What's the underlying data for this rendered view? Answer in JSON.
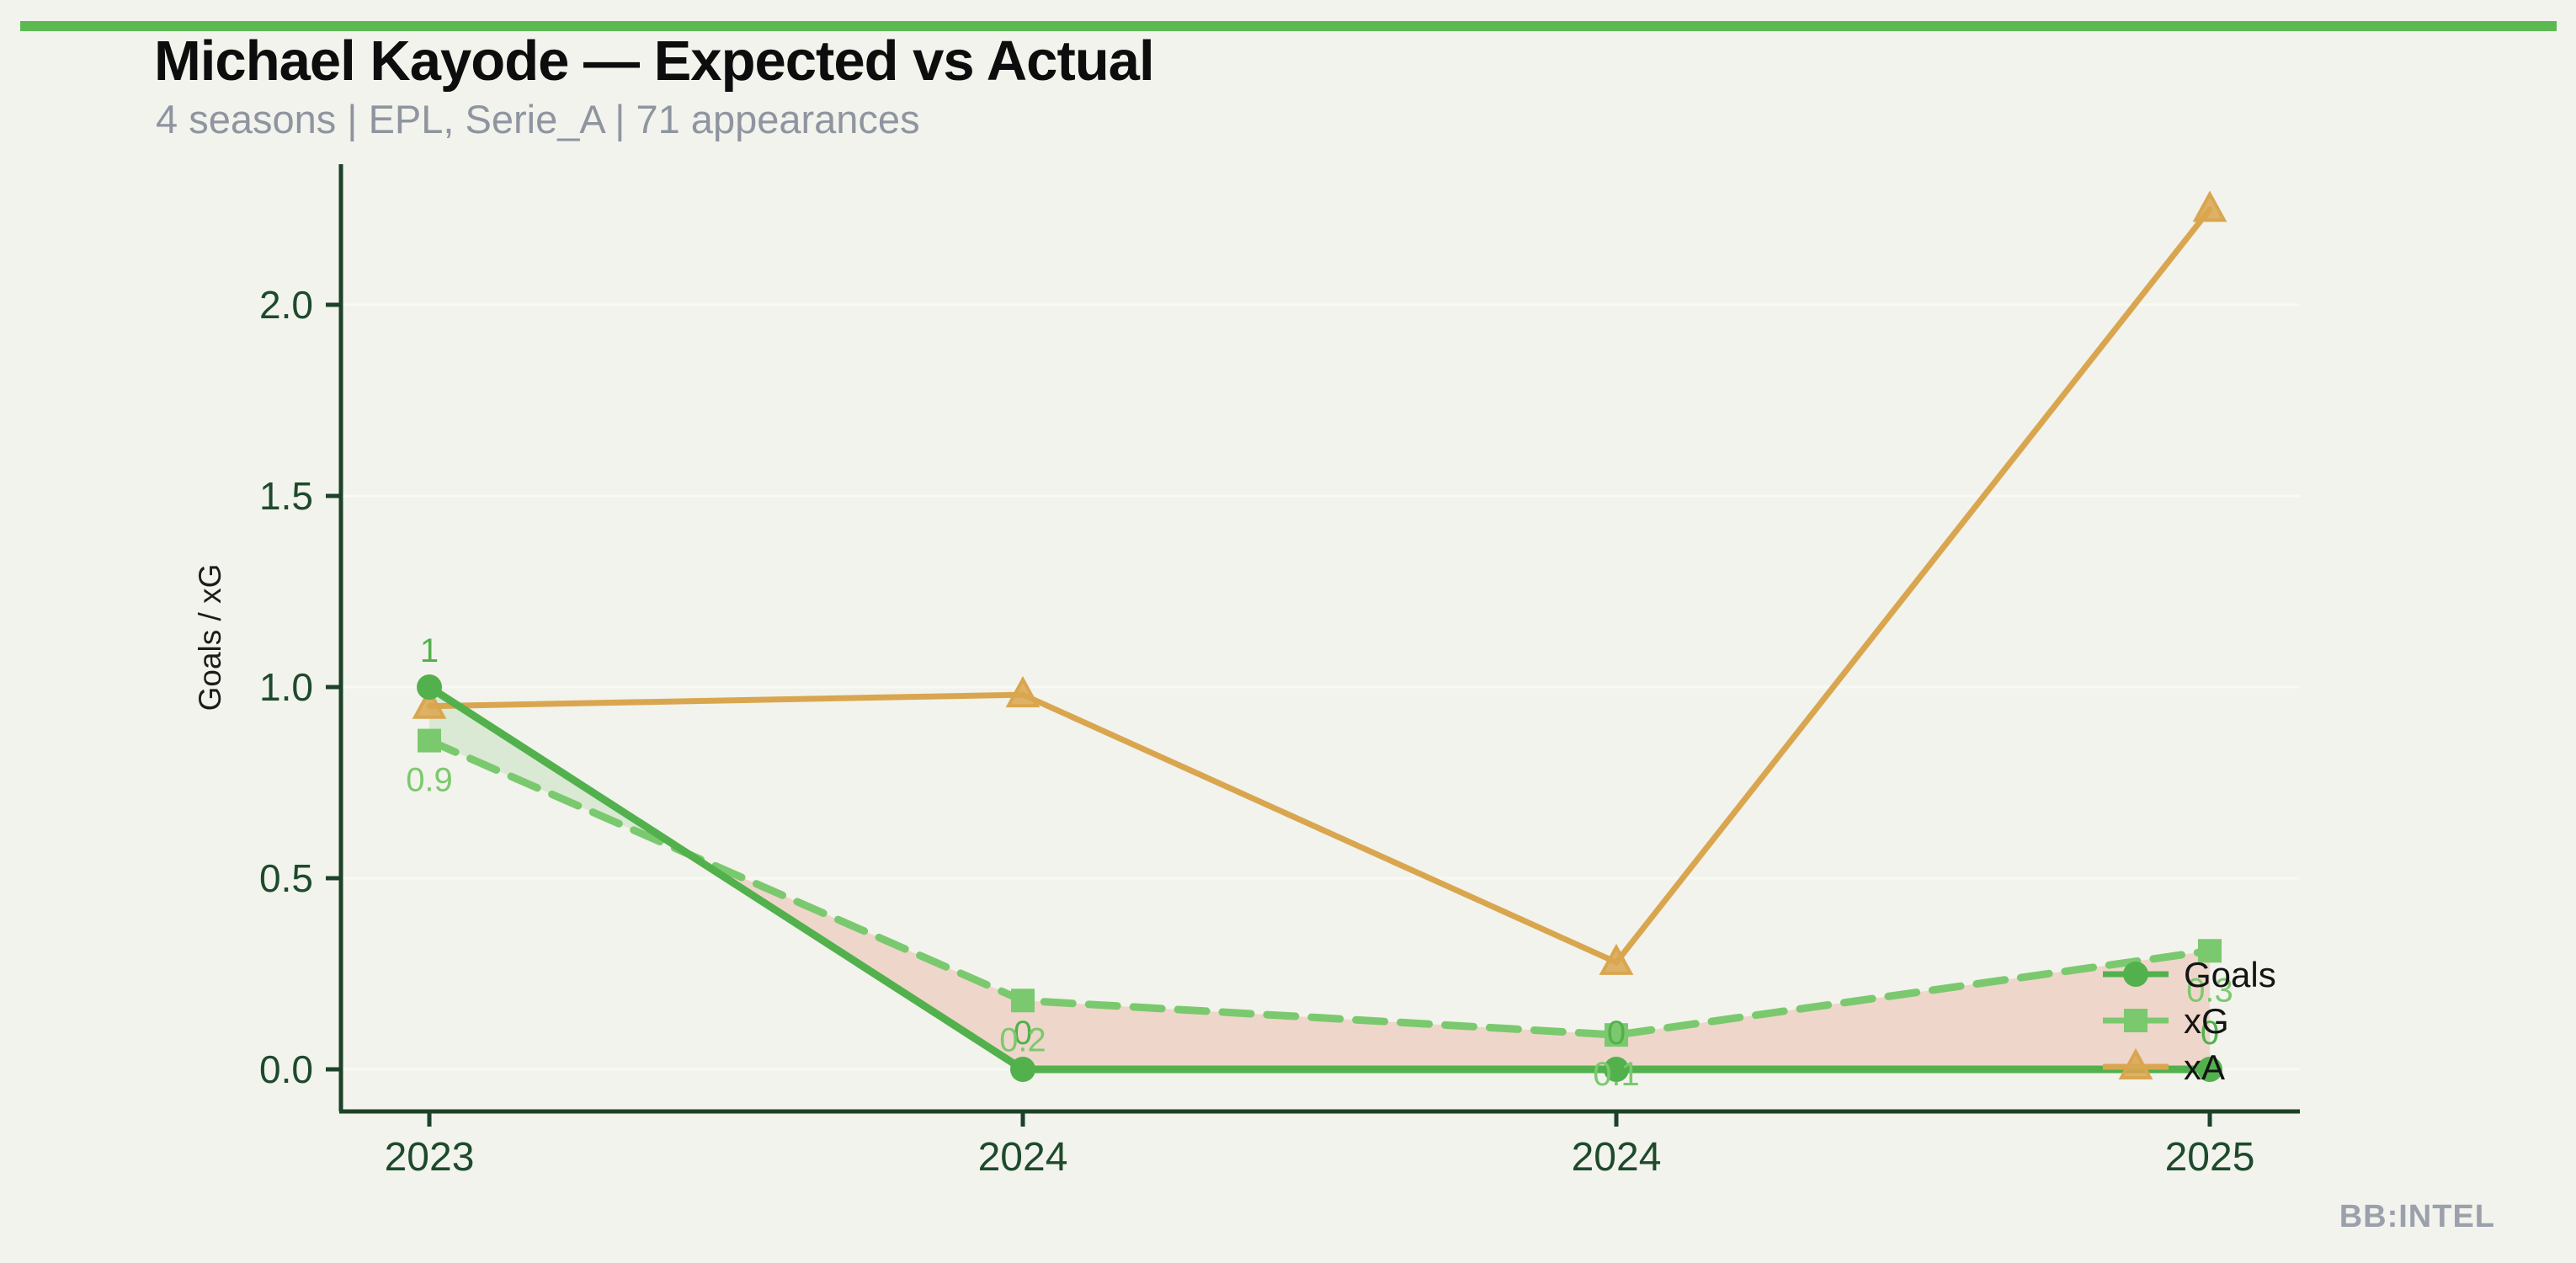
{
  "header": {
    "title": "Michael Kayode — Expected vs Actual",
    "subtitle": "4 seasons | EPL, Serie_A | 71 appearances"
  },
  "watermark": {
    "text": "BB:INTEL"
  },
  "theme": {
    "background": "#f2f3ec",
    "accent_bar_color": "#5bb951",
    "axis_color": "#1d4228",
    "tick_label_color": "#1e4a2c",
    "grid_color": "#f9f9f3",
    "axis_title_color": "#1c1c1c",
    "legend_text_color": "#141414",
    "subtitle_color": "#8f95a0",
    "watermark_color": "#9ba1ac"
  },
  "chart_data": {
    "type": "line",
    "title": "Michael Kayode — Expected vs Actual",
    "xlabel": "",
    "ylabel": "Goals / xG",
    "x_tick_labels": [
      "2023",
      "2024",
      "2024",
      "2025"
    ],
    "y_tick_labels": [
      "0.0",
      "0.5",
      "1.0",
      "1.5",
      "2.0"
    ],
    "y_ticks": [
      0.0,
      0.5,
      1.0,
      1.5,
      2.0
    ],
    "ylim": [
      0,
      2.37
    ],
    "grid": "horizontal-only",
    "legend_position": "right-inside",
    "series": [
      {
        "name": "Goals",
        "color": "#52b14c",
        "line_style": "solid",
        "marker": "circle",
        "values": [
          1,
          0,
          0,
          0
        ],
        "point_labels": [
          "1",
          "0",
          "0",
          "0"
        ]
      },
      {
        "name": "xG",
        "color": "#7bc96e",
        "line_style": "dashed",
        "marker": "square",
        "values": [
          0.86,
          0.18,
          0.09,
          0.31
        ],
        "point_labels": [
          "0.9",
          "0.2",
          "0.1",
          "0.3"
        ]
      },
      {
        "name": "xA",
        "color": "#d9a64f",
        "line_style": "solid",
        "marker": "triangle",
        "values": [
          0.95,
          0.98,
          0.28,
          2.25
        ],
        "point_labels": []
      }
    ],
    "fill_between": {
      "description": "area between Goals and xG",
      "goals_above_color": "rgba(96,180,80,0.16)",
      "goals_below_color": "rgba(230,120,100,0.24)"
    }
  }
}
